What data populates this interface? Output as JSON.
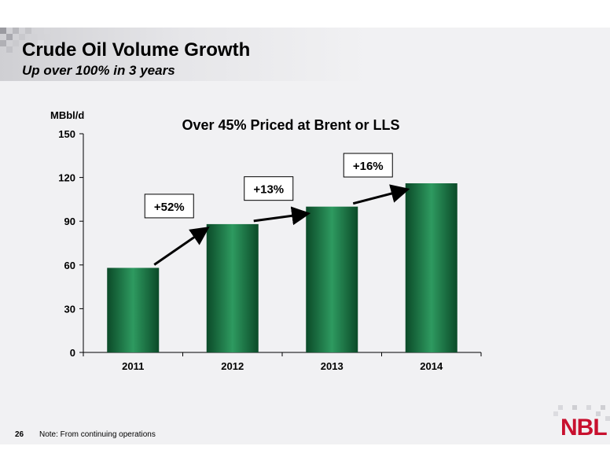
{
  "header": {
    "title": "Crude Oil Volume Growth",
    "subtitle": "Up over 100% in 3 years"
  },
  "footer": {
    "page_number": "26",
    "note": "Note: From continuing operations",
    "logo_text": "NBL",
    "logo_color": "#c8102e"
  },
  "chart_data": {
    "type": "bar",
    "title": "Over 45% Priced at Brent or LLS",
    "ylabel": "MBbl/d",
    "xlabel": "",
    "categories": [
      "2011",
      "2012",
      "2013",
      "2014"
    ],
    "values": [
      58,
      88,
      100,
      116
    ],
    "ylim": [
      0,
      150
    ],
    "yticks": [
      0,
      30,
      60,
      90,
      120,
      150
    ],
    "grid": false,
    "bar_color": "#1f8a52",
    "annotations": [
      {
        "text": "+52%",
        "from": "2011",
        "to": "2012"
      },
      {
        "text": "+13%",
        "from": "2012",
        "to": "2013"
      },
      {
        "text": "+16%",
        "from": "2013",
        "to": "2014"
      }
    ]
  }
}
